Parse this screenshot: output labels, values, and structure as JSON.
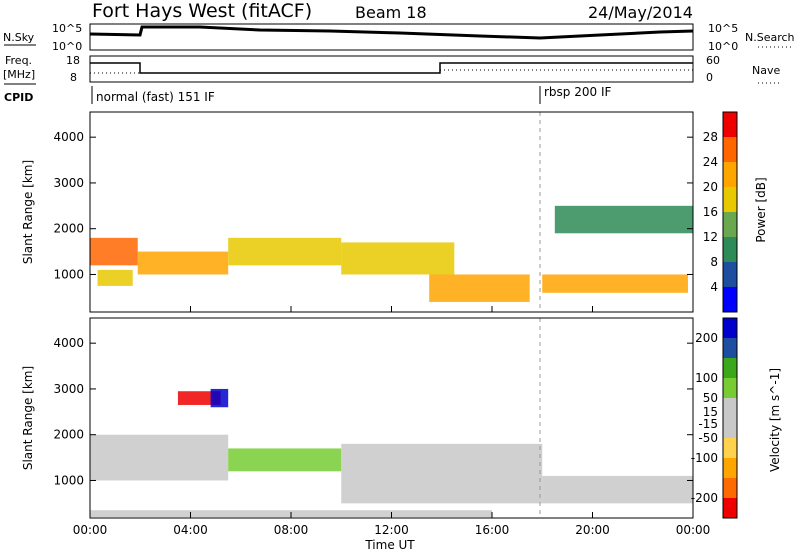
{
  "header": {
    "title": "Fort Hays West (fitACF)",
    "beam": "Beam 18",
    "date": "24/May/2014"
  },
  "top_panels": {
    "nsky_label": "N.Sky",
    "nsearch_label": "N.Search",
    "noise_ticks": [
      "10^5",
      "10^0"
    ],
    "freq_label_1": "Freq.",
    "freq_label_2": "[MHz]",
    "freq_ticks": [
      "18",
      "8"
    ],
    "nave_label": "Nave",
    "nave_ticks": [
      "60",
      "0"
    ],
    "cpid_label": "CPID",
    "cpid_segments": [
      "normal (fast) 151 IF",
      "rbsp 200 IF"
    ]
  },
  "colors": {
    "power_scale": [
      "#0000ff",
      "#1d4ea0",
      "#2e8b57",
      "#6aa84f",
      "#e8c800",
      "#ffa500",
      "#ff6600",
      "#ee0000"
    ],
    "velocity_scale": [
      "#ee0000",
      "#ff6a00",
      "#ffa500",
      "#ffd24d",
      "#c8c8c8",
      "#c8c8c8",
      "#77cc33",
      "#3aa81a",
      "#1d4ea0",
      "#0000cc"
    ]
  },
  "chart_data": [
    {
      "type": "heatmap",
      "name": "Power",
      "xlabel": "",
      "ylabel": "Slant Range [km]",
      "x_ticks": [
        "00:00",
        "04:00",
        "08:00",
        "12:00",
        "16:00",
        "20:00",
        "00:00"
      ],
      "y_ticks": [
        1000,
        2000,
        3000,
        4000
      ],
      "ylim": [
        180,
        4550
      ],
      "colorbar": {
        "label": "Power [dB]",
        "ticks": [
          4,
          8,
          12,
          16,
          20,
          24,
          28
        ],
        "range": [
          0,
          32
        ]
      },
      "echo_regions": [
        {
          "t0": 0.0,
          "t1": 1.9,
          "r0": 1200,
          "r1": 1800,
          "value": 24
        },
        {
          "t0": 0.3,
          "t1": 1.7,
          "r0": 750,
          "r1": 1100,
          "value": 18
        },
        {
          "t0": 1.9,
          "t1": 5.5,
          "r0": 1000,
          "r1": 1500,
          "value": 22
        },
        {
          "t0": 5.5,
          "t1": 10.0,
          "r0": 1200,
          "r1": 1800,
          "value": 16
        },
        {
          "t0": 10.0,
          "t1": 14.5,
          "r0": 1000,
          "r1": 1700,
          "value": 18
        },
        {
          "t0": 13.5,
          "t1": 17.5,
          "r0": 400,
          "r1": 1000,
          "value": 20
        },
        {
          "t0": 18.0,
          "t1": 23.8,
          "r0": 600,
          "r1": 1000,
          "value": 22
        },
        {
          "t0": 18.5,
          "t1": 24.0,
          "r0": 1900,
          "r1": 2500,
          "value": 8
        }
      ]
    },
    {
      "type": "heatmap",
      "name": "Velocity",
      "xlabel": "Time UT",
      "ylabel": "Slant Range [km]",
      "x_ticks": [
        "00:00",
        "04:00",
        "08:00",
        "12:00",
        "16:00",
        "20:00",
        "00:00"
      ],
      "y_ticks": [
        1000,
        2000,
        3000,
        4000
      ],
      "ylim": [
        180,
        4550
      ],
      "colorbar": {
        "label": "Velocity [m s^-1]",
        "ticks": [
          200,
          100,
          50,
          15,
          -15,
          -50,
          -100,
          -200
        ],
        "range": [
          -250,
          250
        ]
      },
      "echo_regions": [
        {
          "t0": 0.0,
          "t1": 5.5,
          "r0": 1000,
          "r1": 2000,
          "value": 0
        },
        {
          "t0": 5.5,
          "t1": 10.0,
          "r0": 1200,
          "r1": 1700,
          "value": 60
        },
        {
          "t0": 3.5,
          "t1": 5.2,
          "r0": 2650,
          "r1": 2950,
          "value": -220
        },
        {
          "t0": 4.8,
          "t1": 5.5,
          "r0": 2600,
          "r1": 3000,
          "value": 220
        },
        {
          "t0": 10.0,
          "t1": 18.0,
          "r0": 500,
          "r1": 1800,
          "value": 0
        },
        {
          "t0": 18.0,
          "t1": 24.0,
          "r0": 500,
          "r1": 1100,
          "value": 0
        },
        {
          "t0": 0.0,
          "t1": 16.0,
          "r0": 200,
          "r1": 350,
          "value": -40
        }
      ]
    }
  ]
}
